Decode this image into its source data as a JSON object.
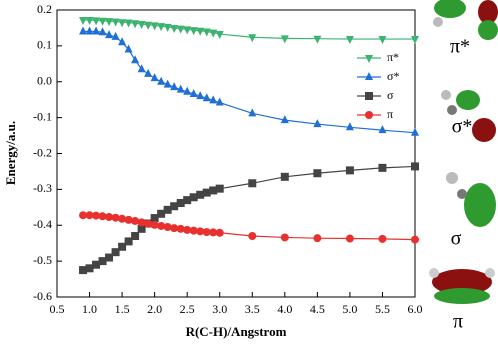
{
  "chart_data": {
    "type": "line",
    "xlabel": "R(C-H)/Angstrom",
    "ylabel": "Energy/a.u.",
    "x": [
      0.9,
      1.0,
      1.1,
      1.2,
      1.3,
      1.4,
      1.5,
      1.6,
      1.7,
      1.8,
      1.9,
      2.0,
      2.1,
      2.2,
      2.3,
      2.4,
      2.5,
      2.6,
      2.7,
      2.8,
      2.9,
      3.0,
      3.5,
      4.0,
      4.5,
      5.0,
      5.5,
      6.0
    ],
    "series": [
      {
        "name": "π*",
        "color": "#3cb371",
        "marker": "triangle-down",
        "values": [
          0.172,
          0.172,
          0.171,
          0.17,
          0.169,
          0.168,
          0.166,
          0.165,
          0.163,
          0.161,
          0.159,
          0.157,
          0.155,
          0.153,
          0.15,
          0.148,
          0.146,
          0.144,
          0.142,
          0.14,
          0.137,
          0.133,
          0.124,
          0.121,
          0.12,
          0.119,
          0.119,
          0.119
        ]
      },
      {
        "name": "σ*",
        "color": "#1f6fd6",
        "marker": "triangle-up",
        "values": [
          0.14,
          0.14,
          0.14,
          0.138,
          0.13,
          0.125,
          0.11,
          0.09,
          0.06,
          0.035,
          0.022,
          0.01,
          0.0,
          -0.008,
          -0.015,
          -0.022,
          -0.028,
          -0.034,
          -0.04,
          -0.046,
          -0.052,
          -0.058,
          -0.088,
          -0.107,
          -0.118,
          -0.127,
          -0.135,
          -0.142
        ]
      },
      {
        "name": "σ",
        "color": "#444444",
        "marker": "square",
        "values": [
          -0.525,
          -0.52,
          -0.51,
          -0.5,
          -0.49,
          -0.475,
          -0.46,
          -0.445,
          -0.43,
          -0.41,
          -0.395,
          -0.38,
          -0.368,
          -0.357,
          -0.347,
          -0.338,
          -0.33,
          -0.322,
          -0.315,
          -0.309,
          -0.303,
          -0.298,
          -0.283,
          -0.265,
          -0.255,
          -0.247,
          -0.24,
          -0.236
        ]
      },
      {
        "name": "π",
        "color": "#e8312f",
        "marker": "circle",
        "values": [
          -0.372,
          -0.372,
          -0.373,
          -0.375,
          -0.377,
          -0.379,
          -0.382,
          -0.385,
          -0.388,
          -0.392,
          -0.396,
          -0.399,
          -0.402,
          -0.405,
          -0.408,
          -0.41,
          -0.413,
          -0.415,
          -0.417,
          -0.419,
          -0.42,
          -0.421,
          -0.43,
          -0.434,
          -0.436,
          -0.437,
          -0.438,
          -0.44
        ]
      }
    ],
    "xlim": [
      0.5,
      6.0
    ],
    "xticks": [
      0.5,
      {
        "value": 1,
        "label": "1.0"
      },
      1.5,
      {
        "value": 2,
        "label": "2.0"
      },
      2.5,
      {
        "value": 3,
        "label": "3.0"
      },
      3.5,
      {
        "value": 4,
        "label": "4.0"
      },
      4.5,
      {
        "value": 5,
        "label": "5.0"
      },
      5.5,
      {
        "value": 6,
        "label": "6.0"
      }
    ],
    "ylim": [
      -0.6,
      0.2
    ],
    "yticks": [
      0.2,
      0.1,
      {
        "value": 0,
        "label": "0.0"
      },
      -0.1,
      -0.2,
      -0.3,
      -0.4,
      -0.5,
      -0.6
    ],
    "legend": "upper-right",
    "orbital_labels": [
      "π*",
      "σ*",
      "σ",
      "π"
    ]
  }
}
